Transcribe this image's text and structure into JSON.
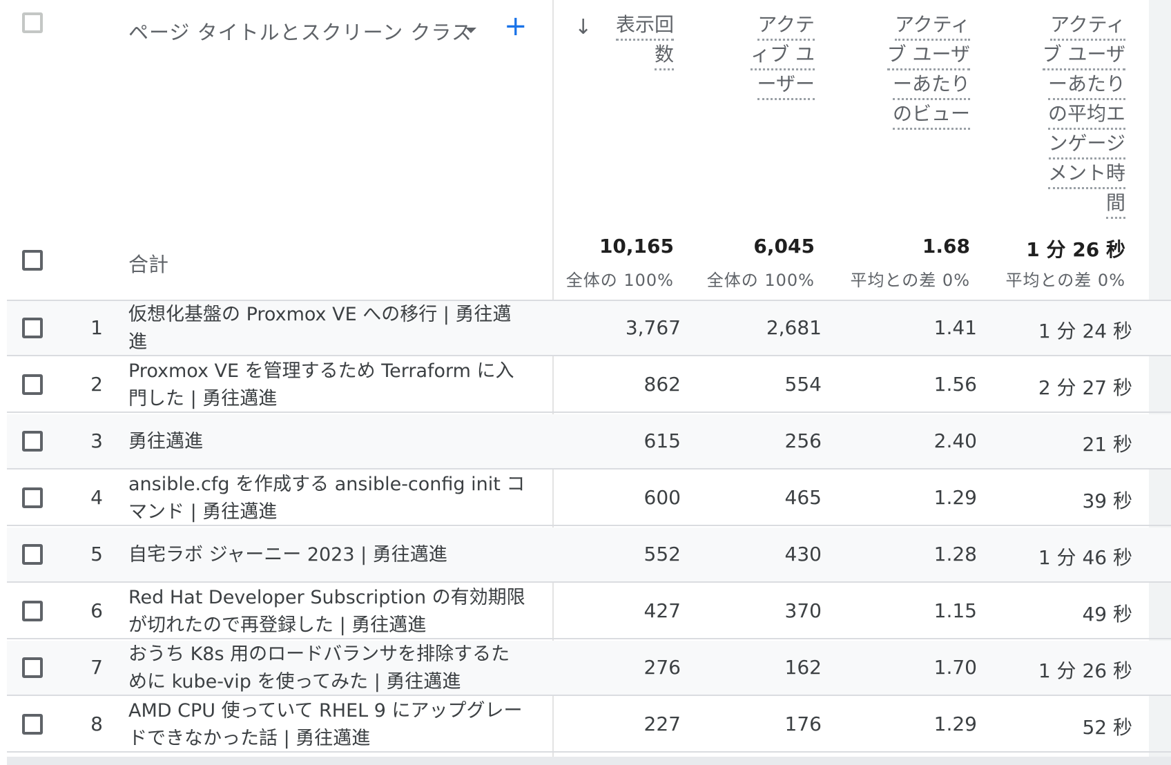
{
  "dimension_header": "ページ タイトルとスクリーン クラス",
  "metric_headers": {
    "views": [
      "表示回",
      "数"
    ],
    "active_users": [
      "アクテ",
      "ィブ ユ",
      "ーザー"
    ],
    "views_per_user": [
      "アクティ",
      "ブ ユーザ",
      "ーあたり",
      "のビュー"
    ],
    "avg_engagement": [
      "アクティ",
      "ブ ユーザ",
      "ーあたり",
      "の平均エ",
      "ンゲージ",
      "メント時",
      "間"
    ]
  },
  "totals": {
    "label": "合計",
    "views": "10,165",
    "views_sub": "全体の 100%",
    "active_users": "6,045",
    "active_users_sub": "全体の 100%",
    "views_per_user": "1.68",
    "views_per_user_sub": "平均との差 0%",
    "avg_engagement": "1 分 26 秒",
    "avg_engagement_sub": "平均との差 0%"
  },
  "rows": [
    {
      "num": "1",
      "title_lines": [
        "仮想化基盤の Proxmox VE への移行 | 勇往邁",
        "進"
      ],
      "views": "3,767",
      "active_users": "2,681",
      "views_per_user": "1.41",
      "avg_engagement": "1 分 24 秒"
    },
    {
      "num": "2",
      "title_lines": [
        "Proxmox VE を管理するため Terraform に入",
        "門した | 勇往邁進"
      ],
      "views": "862",
      "active_users": "554",
      "views_per_user": "1.56",
      "avg_engagement": "2 分 27 秒"
    },
    {
      "num": "3",
      "title_lines": [
        "勇往邁進"
      ],
      "views": "615",
      "active_users": "256",
      "views_per_user": "2.40",
      "avg_engagement": "21 秒"
    },
    {
      "num": "4",
      "title_lines": [
        "ansible.cfg を作成する ansible-config init コ",
        "マンド | 勇往邁進"
      ],
      "views": "600",
      "active_users": "465",
      "views_per_user": "1.29",
      "avg_engagement": "39 秒"
    },
    {
      "num": "5",
      "title_lines": [
        "自宅ラボ ジャーニー 2023 | 勇往邁進"
      ],
      "views": "552",
      "active_users": "430",
      "views_per_user": "1.28",
      "avg_engagement": "1 分 46 秒"
    },
    {
      "num": "6",
      "title_lines": [
        "Red Hat Developer Subscription の有効期限",
        "が切れたので再登録した | 勇往邁進"
      ],
      "views": "427",
      "active_users": "370",
      "views_per_user": "1.15",
      "avg_engagement": "49 秒"
    },
    {
      "num": "7",
      "title_lines": [
        "おうち K8s 用のロードバランサを排除するた",
        "めに kube-vip を使ってみた | 勇往邁進"
      ],
      "views": "276",
      "active_users": "162",
      "views_per_user": "1.70",
      "avg_engagement": "1 分 26 秒"
    },
    {
      "num": "8",
      "title_lines": [
        "AMD CPU 使っていて RHEL 9 にアップグレー",
        "ドできなかった話 | 勇往邁進"
      ],
      "views": "227",
      "active_users": "176",
      "views_per_user": "1.29",
      "avg_engagement": "52 秒"
    }
  ]
}
